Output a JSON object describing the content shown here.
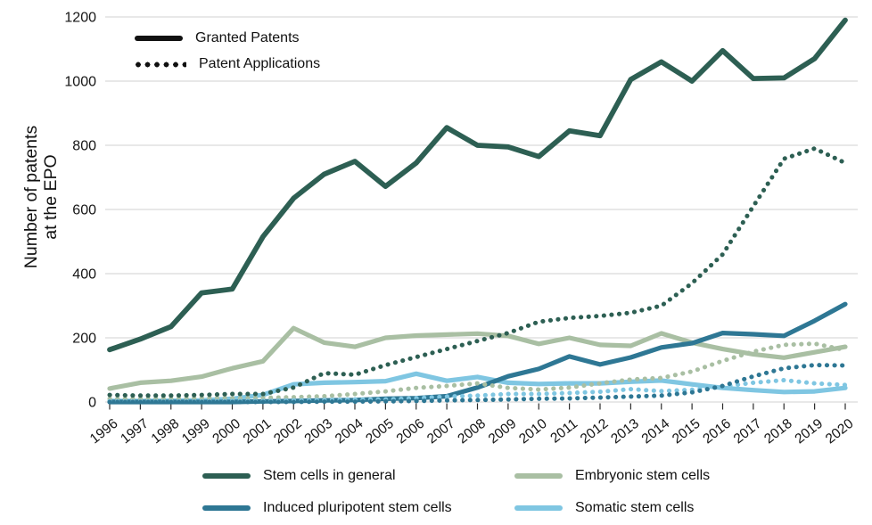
{
  "chart_data": {
    "type": "line",
    "title": "",
    "ylabel_lines": [
      "Number of patents",
      "at the EPO"
    ],
    "ylim": [
      0,
      1200
    ],
    "yticks": [
      0,
      200,
      400,
      600,
      800,
      1000,
      1200
    ],
    "grid": "horizontal",
    "legend_positions": {
      "line_style_legend": "top-left",
      "series_legend": "bottom"
    },
    "x": [
      1996,
      1997,
      1998,
      1999,
      2000,
      2001,
      2002,
      2003,
      2004,
      2005,
      2006,
      2007,
      2008,
      2009,
      2010,
      2011,
      2012,
      2013,
      2014,
      2015,
      2016,
      2017,
      2018,
      2019,
      2020
    ],
    "line_style_legend": [
      {
        "style": "solid",
        "label": "Granted Patents"
      },
      {
        "style": "dotted",
        "label": "Patent Applications"
      }
    ],
    "legend_line_color": "#111111",
    "grid_color": "#d9d9d9",
    "text_color": "#151515",
    "series": [
      {
        "name": "Stem cells in general",
        "color": "#2D5F53",
        "granted": [
          163,
          196,
          235,
          340,
          352,
          515,
          635,
          710,
          750,
          672,
          745,
          855,
          800,
          795,
          765,
          845,
          830,
          1005,
          1060,
          1000,
          1095,
          1008,
          1010,
          1070,
          1190
        ],
        "applications": [
          22,
          20,
          20,
          22,
          25,
          25,
          45,
          90,
          85,
          115,
          140,
          165,
          190,
          215,
          250,
          262,
          268,
          278,
          300,
          370,
          460,
          610,
          758,
          790,
          745
        ]
      },
      {
        "name": "Embryonic stem cells",
        "color": "#A9BFA3",
        "granted": [
          42,
          60,
          66,
          79,
          105,
          127,
          230,
          185,
          172,
          200,
          207,
          210,
          213,
          206,
          181,
          200,
          178,
          175,
          214,
          185,
          165,
          149,
          138,
          155,
          172
        ],
        "applications": [
          10,
          10,
          10,
          12,
          12,
          13,
          15,
          18,
          25,
          33,
          44,
          50,
          58,
          44,
          39,
          45,
          58,
          70,
          75,
          95,
          128,
          157,
          178,
          182,
          162
        ]
      },
      {
        "name": "Induced pluripotent stem cells",
        "color": "#2E7794",
        "granted": [
          0,
          0,
          0,
          0,
          0,
          2,
          3,
          5,
          6,
          10,
          12,
          18,
          45,
          80,
          103,
          142,
          117,
          139,
          170,
          183,
          215,
          211,
          206,
          253,
          305
        ],
        "applications": [
          0,
          0,
          0,
          0,
          0,
          0,
          0,
          1,
          1,
          2,
          3,
          5,
          6,
          8,
          10,
          11,
          14,
          17,
          20,
          30,
          50,
          80,
          105,
          115,
          114
        ]
      },
      {
        "name": "Somatic stem cells",
        "color": "#7FC6E2",
        "granted": [
          3,
          3,
          4,
          5,
          10,
          22,
          55,
          60,
          62,
          65,
          88,
          66,
          78,
          60,
          56,
          58,
          58,
          63,
          67,
          55,
          44,
          37,
          31,
          33,
          44
        ],
        "applications": [
          2,
          2,
          2,
          2,
          3,
          3,
          5,
          6,
          8,
          8,
          12,
          17,
          20,
          25,
          25,
          28,
          32,
          40,
          34,
          38,
          48,
          60,
          68,
          58,
          53
        ]
      }
    ]
  }
}
